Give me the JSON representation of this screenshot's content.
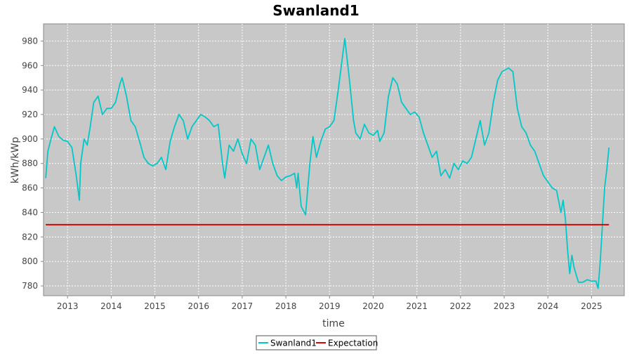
{
  "chart_data": {
    "type": "line",
    "title": "Swanland1",
    "xlabel": "time",
    "ylabel": "kWh/kWp",
    "xlim": [
      2012.45,
      2025.75
    ],
    "ylim": [
      772,
      994
    ],
    "x_ticks": [
      2013,
      2014,
      2015,
      2016,
      2017,
      2018,
      2019,
      2020,
      2021,
      2022,
      2023,
      2024,
      2025
    ],
    "x_tick_labels": [
      "2013",
      "2014",
      "2015",
      "2016",
      "2017",
      "2018",
      "2019",
      "2020",
      "2021",
      "2022",
      "2023",
      "2024",
      "2025"
    ],
    "y_ticks": [
      780,
      800,
      820,
      840,
      860,
      880,
      900,
      920,
      940,
      960,
      980
    ],
    "y_tick_labels": [
      "780",
      "800",
      "820",
      "840",
      "860",
      "880",
      "900",
      "920",
      "940",
      "960",
      "980"
    ],
    "grid": true,
    "legend_position": "bottom-center",
    "series": [
      {
        "name": "Swanland1",
        "color": "#00c8c8",
        "x": [
          2012.5,
          2012.55,
          2012.62,
          2012.7,
          2012.8,
          2012.9,
          2013.0,
          2013.1,
          2013.2,
          2013.27,
          2013.3,
          2013.38,
          2013.45,
          2013.52,
          2013.6,
          2013.7,
          2013.8,
          2013.9,
          2014.0,
          2014.1,
          2014.2,
          2014.25,
          2014.35,
          2014.45,
          2014.55,
          2014.65,
          2014.75,
          2014.85,
          2014.95,
          2015.05,
          2015.15,
          2015.25,
          2015.35,
          2015.45,
          2015.55,
          2015.65,
          2015.75,
          2015.85,
          2015.95,
          2016.05,
          2016.15,
          2016.25,
          2016.35,
          2016.45,
          2016.55,
          2016.6,
          2016.7,
          2016.8,
          2016.9,
          2017.0,
          2017.1,
          2017.2,
          2017.3,
          2017.4,
          2017.5,
          2017.6,
          2017.7,
          2017.8,
          2017.9,
          2018.0,
          2018.1,
          2018.2,
          2018.25,
          2018.28,
          2018.35,
          2018.45,
          2018.55,
          2018.62,
          2018.7,
          2018.8,
          2018.9,
          2019.0,
          2019.1,
          2019.2,
          2019.3,
          2019.35,
          2019.45,
          2019.55,
          2019.6,
          2019.7,
          2019.8,
          2019.9,
          2020.0,
          2020.1,
          2020.15,
          2020.25,
          2020.35,
          2020.45,
          2020.55,
          2020.65,
          2020.75,
          2020.85,
          2020.95,
          2021.05,
          2021.15,
          2021.25,
          2021.35,
          2021.45,
          2021.55,
          2021.65,
          2021.75,
          2021.85,
          2021.95,
          2022.05,
          2022.15,
          2022.25,
          2022.35,
          2022.45,
          2022.55,
          2022.65,
          2022.75,
          2022.85,
          2022.95,
          2023.05,
          2023.1,
          2023.2,
          2023.3,
          2023.4,
          2023.5,
          2023.6,
          2023.7,
          2023.8,
          2023.9,
          2024.0,
          2024.1,
          2024.2,
          2024.3,
          2024.35,
          2024.4,
          2024.45,
          2024.5,
          2024.55,
          2024.6,
          2024.7,
          2024.8,
          2024.9,
          2025.0,
          2025.1,
          2025.15,
          2025.2,
          2025.25,
          2025.3,
          2025.35,
          2025.4
        ],
        "values": [
          868,
          890,
          900,
          910,
          902,
          899,
          898,
          893,
          870,
          850,
          880,
          900,
          895,
          910,
          930,
          935,
          920,
          925,
          925,
          930,
          945,
          950,
          935,
          915,
          910,
          898,
          885,
          880,
          878,
          880,
          885,
          875,
          898,
          910,
          920,
          915,
          900,
          910,
          915,
          920,
          918,
          915,
          910,
          912,
          880,
          868,
          895,
          890,
          900,
          888,
          880,
          900,
          895,
          875,
          885,
          895,
          880,
          870,
          866,
          869,
          870,
          872,
          860,
          872,
          845,
          838,
          880,
          902,
          885,
          898,
          908,
          910,
          915,
          940,
          968,
          982,
          950,
          915,
          905,
          900,
          912,
          905,
          903,
          907,
          898,
          905,
          935,
          950,
          945,
          930,
          925,
          920,
          922,
          918,
          905,
          895,
          885,
          890,
          870,
          875,
          868,
          880,
          875,
          882,
          880,
          885,
          900,
          915,
          895,
          905,
          930,
          948,
          955,
          957,
          958,
          955,
          925,
          910,
          905,
          895,
          890,
          880,
          870,
          865,
          860,
          858,
          840,
          850,
          835,
          810,
          790,
          805,
          795,
          783,
          783,
          785,
          784,
          784,
          778,
          800,
          830,
          860,
          875,
          893
        ]
      },
      {
        "name": "Expectation",
        "color": "#dd0000",
        "x": [
          2012.5,
          2025.4
        ],
        "values": [
          830,
          830
        ]
      }
    ]
  }
}
